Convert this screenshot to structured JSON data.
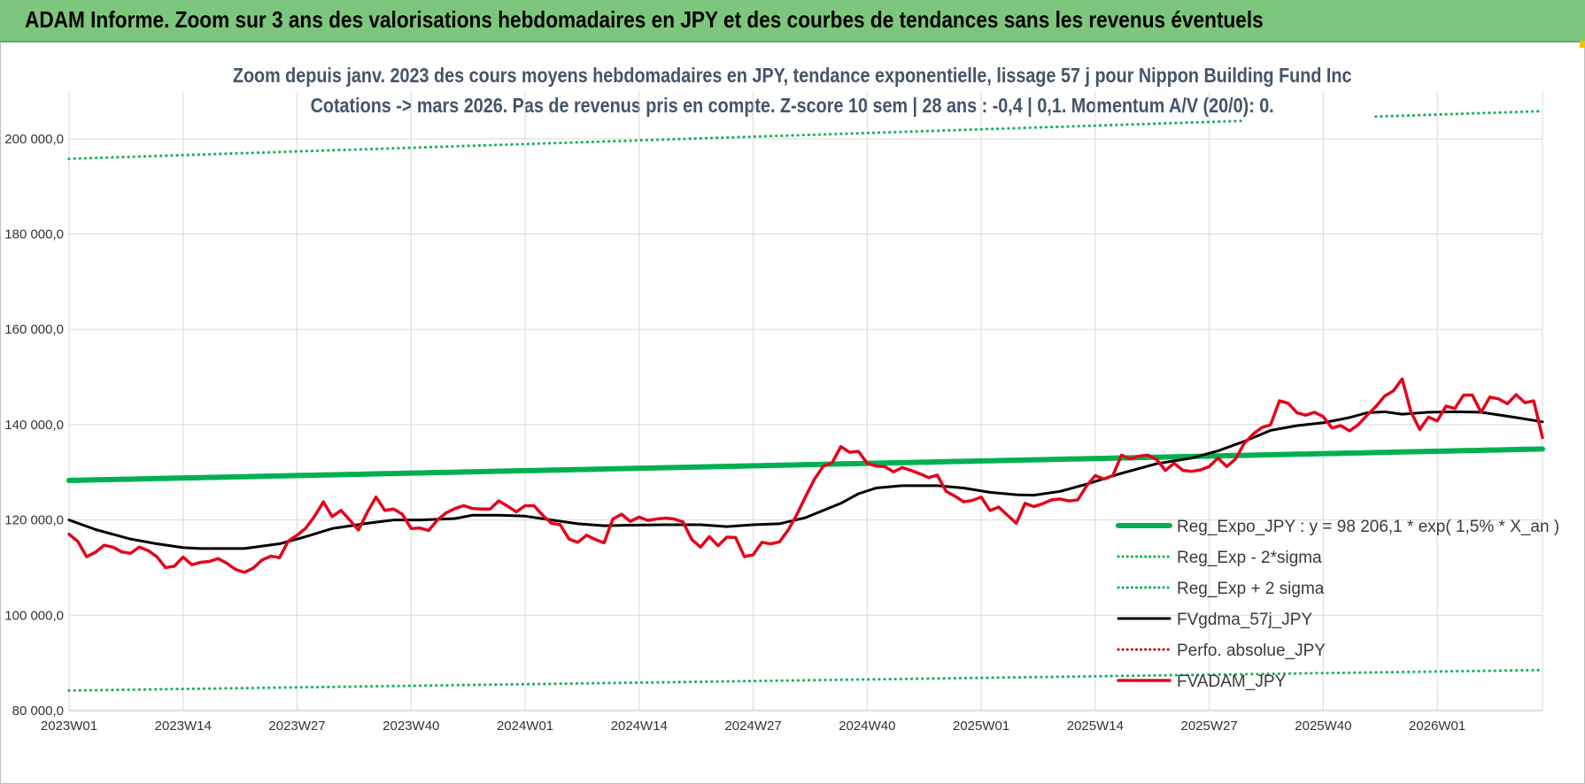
{
  "banner": {
    "title": "ADAM Informe. Zoom sur 3 ans des valorisations hebdomadaires en JPY et des courbes de tendances sans les revenus éventuels"
  },
  "colors": {
    "banner_bg": "#7dc67d",
    "regression": "#00b050",
    "band": "#00b050",
    "fvgdma": "#000000",
    "perfo": "#c00000",
    "fvadam": "#e3061b",
    "grid": "#d9d9d9"
  },
  "chart_data": {
    "type": "line",
    "title_line1": "Zoom depuis janv. 2023 des cours moyens hebdomadaires en JPY, tendance exponentielle, lissage 57 j pour Nippon Building Fund Inc",
    "title_line2": "Cotations -> mars 2026. Pas de revenus pris en compte. Z-score 10 sem | 28 ans : -0,4 | 0,1. Momentum A/V (20/0): 0.",
    "xlabel": "",
    "ylabel": "",
    "ylim": [
      80000,
      210000
    ],
    "y_ticks": [
      {
        "value": 80000,
        "label": "80 000,0"
      },
      {
        "value": 100000,
        "label": "100 000,0"
      },
      {
        "value": 120000,
        "label": "120 000,0"
      },
      {
        "value": 140000,
        "label": "140 000,0"
      },
      {
        "value": 160000,
        "label": "160 000,0"
      },
      {
        "value": 180000,
        "label": "180 000,0"
      },
      {
        "value": 200000,
        "label": "200 000,0"
      }
    ],
    "weeks_count": 169,
    "x_ticks": [
      {
        "index": 0,
        "label": "2023W01"
      },
      {
        "index": 13,
        "label": "2023W14"
      },
      {
        "index": 26,
        "label": "2023W27"
      },
      {
        "index": 39,
        "label": "2023W40"
      },
      {
        "index": 52,
        "label": "2024W01"
      },
      {
        "index": 65,
        "label": "2024W14"
      },
      {
        "index": 78,
        "label": "2024W27"
      },
      {
        "index": 91,
        "label": "2024W40"
      },
      {
        "index": 104,
        "label": "2025W01"
      },
      {
        "index": 117,
        "label": "2025W14"
      },
      {
        "index": 130,
        "label": "2025W27"
      },
      {
        "index": 143,
        "label": "2025W40"
      },
      {
        "index": 156,
        "label": "2026W01"
      }
    ],
    "legend_position": "bottom-right",
    "series": [
      {
        "name": "Reg_Expo_JPY : y = 98 206,1 * exp( 1,5% *  X_an )",
        "style": "solid-thick",
        "color": "#00b050",
        "keypoints": [
          [
            0,
            128300
          ],
          [
            168,
            134900
          ]
        ]
      },
      {
        "name": "Reg_Exp - 2*sigma",
        "style": "dotted",
        "color": "#00b050",
        "keypoints": [
          [
            0,
            84200
          ],
          [
            168,
            88500
          ]
        ]
      },
      {
        "name": "Reg_Exp + 2 sigma",
        "style": "dotted",
        "color": "#00b050",
        "keypoints": [
          [
            0,
            195800
          ],
          [
            168,
            205800
          ]
        ],
        "gap": [
          134,
          149
        ]
      },
      {
        "name": "FVgdma_57j_JPY",
        "style": "solid",
        "color": "#000000",
        "keypoints": [
          [
            0,
            120000
          ],
          [
            3,
            118000
          ],
          [
            7,
            116000
          ],
          [
            10,
            115000
          ],
          [
            13,
            114200
          ],
          [
            15,
            114000
          ],
          [
            20,
            114000
          ],
          [
            24,
            115000
          ],
          [
            27,
            116500
          ],
          [
            30,
            118200
          ],
          [
            34,
            119300
          ],
          [
            37,
            120000
          ],
          [
            40,
            120000
          ],
          [
            44,
            120300
          ],
          [
            46,
            121000
          ],
          [
            49,
            121000
          ],
          [
            52,
            120800
          ],
          [
            55,
            120000
          ],
          [
            58,
            119200
          ],
          [
            61,
            118800
          ],
          [
            64,
            118900
          ],
          [
            68,
            119000
          ],
          [
            72,
            119000
          ],
          [
            75,
            118600
          ],
          [
            78,
            119000
          ],
          [
            81,
            119200
          ],
          [
            84,
            120500
          ],
          [
            88,
            123500
          ],
          [
            90,
            125500
          ],
          [
            92,
            126700
          ],
          [
            95,
            127200
          ],
          [
            99,
            127200
          ],
          [
            102,
            126700
          ],
          [
            105,
            125800
          ],
          [
            108,
            125300
          ],
          [
            110,
            125200
          ],
          [
            113,
            126000
          ],
          [
            116,
            127500
          ],
          [
            120,
            129800
          ],
          [
            124,
            131800
          ],
          [
            128,
            133000
          ],
          [
            131,
            134500
          ],
          [
            134,
            136500
          ],
          [
            137,
            138800
          ],
          [
            140,
            139800
          ],
          [
            143,
            140400
          ],
          [
            146,
            141500
          ],
          [
            148,
            142500
          ],
          [
            150,
            142700
          ],
          [
            152,
            142200
          ],
          [
            155,
            142600
          ],
          [
            158,
            142700
          ],
          [
            161,
            142600
          ],
          [
            165,
            141500
          ],
          [
            168,
            140600
          ]
        ]
      },
      {
        "name": "Perfo. absolue_JPY",
        "style": "dotted",
        "color": "#c00000",
        "keypoints": []
      },
      {
        "name": "FVADAM_JPY",
        "style": "solid-thick",
        "color": "#e3061b",
        "keypoints": [
          [
            0,
            117000
          ],
          [
            1,
            115500
          ],
          [
            2,
            112300
          ],
          [
            3,
            113200
          ],
          [
            4,
            114700
          ],
          [
            5,
            114300
          ],
          [
            6,
            113300
          ],
          [
            7,
            113000
          ],
          [
            8,
            114300
          ],
          [
            9,
            113600
          ],
          [
            10,
            112300
          ],
          [
            11,
            110000
          ],
          [
            12,
            110300
          ],
          [
            13,
            112200
          ],
          [
            14,
            110600
          ],
          [
            15,
            111100
          ],
          [
            16,
            111300
          ],
          [
            17,
            111900
          ],
          [
            18,
            110900
          ],
          [
            19,
            109600
          ],
          [
            20,
            109000
          ],
          [
            21,
            109900
          ],
          [
            22,
            111600
          ],
          [
            23,
            112400
          ],
          [
            24,
            112100
          ],
          [
            25,
            115600
          ],
          [
            26,
            116800
          ],
          [
            27,
            118300
          ],
          [
            28,
            120800
          ],
          [
            29,
            123800
          ],
          [
            30,
            120700
          ],
          [
            31,
            122000
          ],
          [
            32,
            120000
          ],
          [
            33,
            117900
          ],
          [
            34,
            121600
          ],
          [
            35,
            124800
          ],
          [
            36,
            122000
          ],
          [
            37,
            122300
          ],
          [
            38,
            121200
          ],
          [
            39,
            118200
          ],
          [
            40,
            118300
          ],
          [
            41,
            117800
          ],
          [
            42,
            120000
          ],
          [
            43,
            121500
          ],
          [
            44,
            122400
          ],
          [
            45,
            123000
          ],
          [
            46,
            122400
          ],
          [
            47,
            122300
          ],
          [
            48,
            122300
          ],
          [
            49,
            124000
          ],
          [
            50,
            122900
          ],
          [
            51,
            121700
          ],
          [
            52,
            123000
          ],
          [
            53,
            123000
          ],
          [
            54,
            121000
          ],
          [
            55,
            119300
          ],
          [
            56,
            119000
          ],
          [
            57,
            116000
          ],
          [
            58,
            115300
          ],
          [
            59,
            116800
          ],
          [
            60,
            115900
          ],
          [
            61,
            115200
          ],
          [
            62,
            120200
          ],
          [
            63,
            121200
          ],
          [
            64,
            119700
          ],
          [
            65,
            120600
          ],
          [
            66,
            119900
          ],
          [
            67,
            120200
          ],
          [
            68,
            120400
          ],
          [
            69,
            120200
          ],
          [
            70,
            119600
          ],
          [
            71,
            115900
          ],
          [
            72,
            114300
          ],
          [
            73,
            116500
          ],
          [
            74,
            114600
          ],
          [
            75,
            116400
          ],
          [
            76,
            116300
          ],
          [
            77,
            112300
          ],
          [
            78,
            112700
          ],
          [
            79,
            115300
          ],
          [
            80,
            115000
          ],
          [
            81,
            115400
          ],
          [
            82,
            117900
          ],
          [
            83,
            121200
          ],
          [
            84,
            125000
          ],
          [
            85,
            128600
          ],
          [
            86,
            131300
          ],
          [
            87,
            132000
          ],
          [
            88,
            135400
          ],
          [
            89,
            134200
          ],
          [
            90,
            134400
          ],
          [
            91,
            131900
          ],
          [
            92,
            131300
          ],
          [
            93,
            131200
          ],
          [
            94,
            130100
          ],
          [
            95,
            131000
          ],
          [
            96,
            130400
          ],
          [
            97,
            129700
          ],
          [
            98,
            128900
          ],
          [
            99,
            129400
          ],
          [
            100,
            126000
          ],
          [
            101,
            125000
          ],
          [
            102,
            123800
          ],
          [
            103,
            124100
          ],
          [
            104,
            124800
          ],
          [
            105,
            122000
          ],
          [
            106,
            122700
          ],
          [
            107,
            121000
          ],
          [
            108,
            119300
          ],
          [
            109,
            123500
          ],
          [
            110,
            122800
          ],
          [
            111,
            123400
          ],
          [
            112,
            124200
          ],
          [
            113,
            124400
          ],
          [
            114,
            124000
          ],
          [
            115,
            124200
          ],
          [
            116,
            127100
          ],
          [
            117,
            129300
          ],
          [
            118,
            128600
          ],
          [
            119,
            129300
          ],
          [
            120,
            133600
          ],
          [
            121,
            132800
          ],
          [
            122,
            133400
          ],
          [
            123,
            133600
          ],
          [
            124,
            132700
          ],
          [
            125,
            130400
          ],
          [
            126,
            131900
          ],
          [
            127,
            130400
          ],
          [
            128,
            130200
          ],
          [
            129,
            130500
          ],
          [
            130,
            131200
          ],
          [
            131,
            133000
          ],
          [
            132,
            131200
          ],
          [
            133,
            132800
          ],
          [
            134,
            136100
          ],
          [
            135,
            138000
          ],
          [
            136,
            139400
          ],
          [
            137,
            140000
          ],
          [
            138,
            145000
          ],
          [
            139,
            144500
          ],
          [
            140,
            142500
          ],
          [
            141,
            142000
          ],
          [
            142,
            142600
          ],
          [
            143,
            141700
          ],
          [
            144,
            139300
          ],
          [
            145,
            139800
          ],
          [
            146,
            138700
          ],
          [
            147,
            140000
          ],
          [
            148,
            142000
          ],
          [
            149,
            143800
          ],
          [
            150,
            146000
          ],
          [
            151,
            147100
          ],
          [
            152,
            149600
          ],
          [
            153,
            142700
          ],
          [
            154,
            139000
          ],
          [
            155,
            141600
          ],
          [
            156,
            140800
          ],
          [
            157,
            143900
          ],
          [
            158,
            143400
          ],
          [
            159,
            146200
          ],
          [
            160,
            146200
          ],
          [
            161,
            142600
          ],
          [
            162,
            145800
          ],
          [
            163,
            145400
          ],
          [
            164,
            144400
          ],
          [
            165,
            146300
          ],
          [
            166,
            144600
          ],
          [
            167,
            145000
          ],
          [
            168,
            137300
          ]
        ]
      }
    ]
  }
}
